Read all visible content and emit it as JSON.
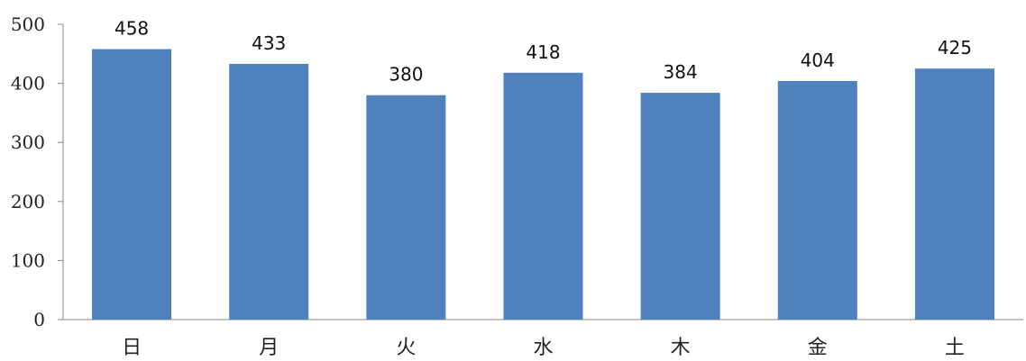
{
  "chart_data": {
    "type": "bar",
    "categories": [
      "日",
      "月",
      "火",
      "水",
      "木",
      "金",
      "土"
    ],
    "values": [
      458,
      433,
      380,
      418,
      384,
      404,
      425
    ],
    "ylim": [
      0,
      500
    ],
    "yticks": [
      0,
      100,
      200,
      300,
      400,
      500
    ],
    "grid": false,
    "bar_color": "#4f81bd",
    "data_labels": true
  }
}
